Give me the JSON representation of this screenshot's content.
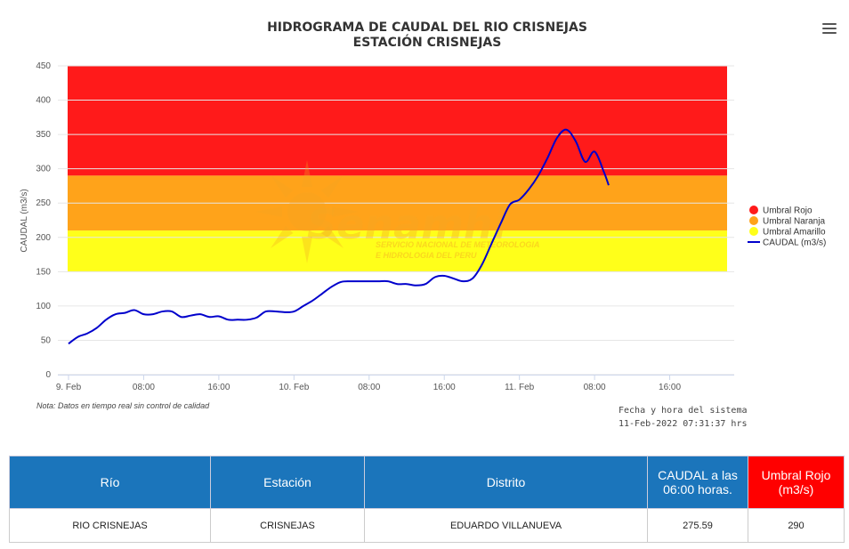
{
  "chart_data": {
    "type": "line",
    "title": "HIDROGRAMA DE CAUDAL DEL RIO CRISNEJAS",
    "subtitle": "ESTACIÓN CRISNEJAS",
    "ylabel": "CAUDAL (m3/s)",
    "ylim": [
      0,
      450
    ],
    "yticks": [
      0,
      50,
      100,
      150,
      200,
      250,
      300,
      350,
      400,
      450
    ],
    "xlim": [
      0,
      72
    ],
    "xticks": [
      {
        "x": 0,
        "label": "9. Feb"
      },
      {
        "x": 8,
        "label": "08:00"
      },
      {
        "x": 16,
        "label": "16:00"
      },
      {
        "x": 24,
        "label": "10. Feb"
      },
      {
        "x": 32,
        "label": "08:00"
      },
      {
        "x": 40,
        "label": "16:00"
      },
      {
        "x": 48,
        "label": "11. Feb"
      },
      {
        "x": 56,
        "label": "08:00"
      },
      {
        "x": 64,
        "label": "16:00"
      }
    ],
    "bands": [
      {
        "name": "Umbral Rojo",
        "from": 290,
        "to": 450,
        "color": "#ff1a1a"
      },
      {
        "name": "Umbral Naranja",
        "from": 210,
        "to": 290,
        "color": "#ffa31a"
      },
      {
        "name": "Umbral Amarillo",
        "from": 150,
        "to": 210,
        "color": "#ffff1a"
      }
    ],
    "series": [
      {
        "name": "CAUDAL (m3/s)",
        "color": "#0000cc",
        "points": [
          [
            0,
            45
          ],
          [
            1,
            55
          ],
          [
            2,
            60
          ],
          [
            3,
            68
          ],
          [
            4,
            80
          ],
          [
            5,
            88
          ],
          [
            6,
            90
          ],
          [
            7,
            94
          ],
          [
            8,
            88
          ],
          [
            9,
            88
          ],
          [
            10,
            92
          ],
          [
            11,
            92
          ],
          [
            12,
            84
          ],
          [
            13,
            86
          ],
          [
            14,
            88
          ],
          [
            15,
            84
          ],
          [
            16,
            85
          ],
          [
            17,
            80
          ],
          [
            18,
            80
          ],
          [
            19,
            80
          ],
          [
            20,
            83
          ],
          [
            21,
            92
          ],
          [
            22,
            92
          ],
          [
            23,
            91
          ],
          [
            24,
            92
          ],
          [
            25,
            100
          ],
          [
            26,
            108
          ],
          [
            27,
            118
          ],
          [
            28,
            128
          ],
          [
            29,
            135
          ],
          [
            30,
            136
          ],
          [
            31,
            136
          ],
          [
            32,
            136
          ],
          [
            33,
            136
          ],
          [
            34,
            136
          ],
          [
            35,
            132
          ],
          [
            36,
            132
          ],
          [
            37,
            130
          ],
          [
            38,
            132
          ],
          [
            39,
            142
          ],
          [
            40,
            144
          ],
          [
            41,
            140
          ],
          [
            42,
            136
          ],
          [
            43,
            140
          ],
          [
            44,
            160
          ],
          [
            45,
            190
          ],
          [
            46,
            220
          ],
          [
            47,
            248
          ],
          [
            48,
            255
          ],
          [
            49,
            270
          ],
          [
            50,
            290
          ],
          [
            51,
            316
          ],
          [
            52,
            345
          ],
          [
            53,
            357
          ],
          [
            54,
            340
          ],
          [
            55,
            310
          ],
          [
            56,
            325
          ],
          [
            57,
            295
          ],
          [
            57.5,
            276
          ]
        ]
      }
    ],
    "legend_placement": "right",
    "watermark": {
      "name": "Senamhi",
      "line1": "SERVICIO NACIONAL DE METEOROLOGIA",
      "line2": "E HIDROLOGIA DEL PERU"
    },
    "note": "Nota: Datos en tiempo real sin control de calidad",
    "system_label": "Fecha y hora del sistema",
    "system_time": "11-Feb-2022 07:31:37 hrs"
  },
  "menu_icon": "hamburger-menu-icon",
  "table": {
    "headers": [
      "Río",
      "Estación",
      "Distrito",
      "CAUDAL a las 06:00 horas.",
      "Umbral Rojo (m3/s)"
    ],
    "row": [
      "RIO CRISNEJAS",
      "CRISNEJAS",
      "EDUARDO VILLANUEVA",
      "275.59",
      "290"
    ]
  }
}
